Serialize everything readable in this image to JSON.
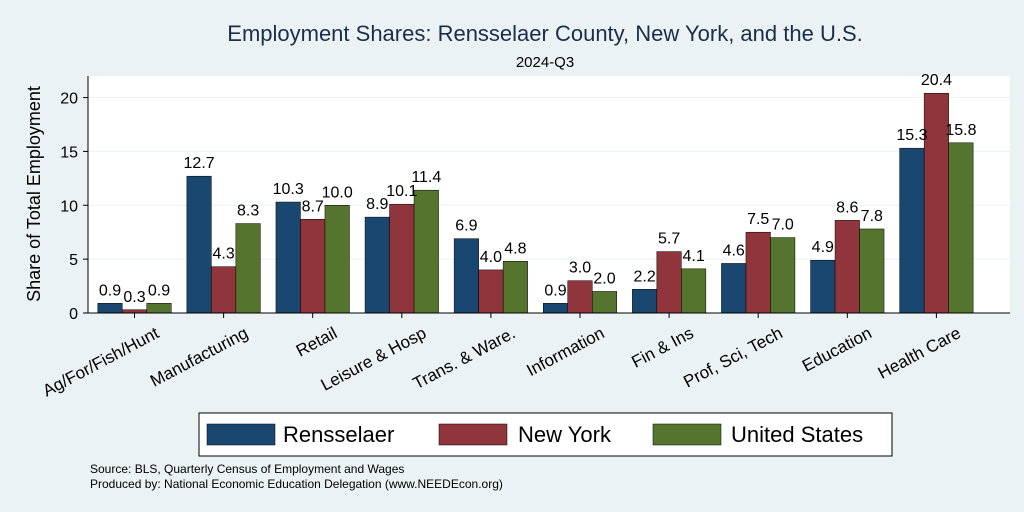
{
  "chart_data": {
    "type": "bar",
    "title": "Employment Shares: Rensselaer County, New York, and the U.S.",
    "subtitle": "2024-Q3",
    "ylabel": "Share of Total Employment",
    "xlabel": "",
    "ylim": [
      0,
      22
    ],
    "yticks": [
      0,
      5,
      10,
      15,
      20
    ],
    "grid": true,
    "legend_position": "bottom",
    "categories": [
      "Ag/For/Fish/Hunt",
      "Manufacturing",
      "Retail",
      "Leisure & Hosp",
      "Trans. & Ware.",
      "Information",
      "Fin & Ins",
      "Prof, Sci, Tech",
      "Education",
      "Health Care"
    ],
    "series": [
      {
        "name": "Rensselaer",
        "color": "#1a476f",
        "values": [
          0.9,
          12.7,
          10.3,
          8.9,
          6.9,
          0.9,
          2.2,
          4.6,
          4.9,
          15.3
        ]
      },
      {
        "name": "New York",
        "color": "#90353b",
        "values": [
          0.3,
          4.3,
          8.7,
          10.1,
          4.0,
          3.0,
          5.7,
          7.5,
          8.6,
          20.4
        ]
      },
      {
        "name": "United States",
        "color": "#55752f",
        "values": [
          0.9,
          8.3,
          10.0,
          11.4,
          4.8,
          2.0,
          4.1,
          7.0,
          7.8,
          15.8
        ]
      }
    ],
    "notes": [
      "Source: BLS, Quarterly Census of Employment and Wages",
      "Produced by: National Economic Education Delegation (www.NEEDEcon.org)"
    ]
  }
}
